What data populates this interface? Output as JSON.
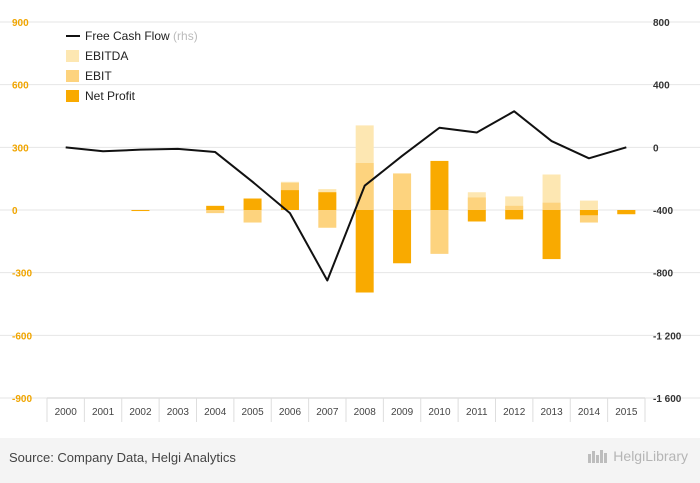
{
  "chart_data": {
    "type": "bar+line",
    "categories": [
      "2000",
      "2001",
      "2002",
      "2003",
      "2004",
      "2005",
      "2006",
      "2007",
      "2008",
      "2009",
      "2010",
      "2011",
      "2012",
      "2013",
      "2014",
      "2015"
    ],
    "series": [
      {
        "name": "EBITDA",
        "axis": "left",
        "kind": "bar",
        "values": [
          0,
          0,
          0,
          0,
          5,
          25,
          135,
          100,
          405,
          175,
          125,
          85,
          65,
          170,
          45,
          0
        ]
      },
      {
        "name": "EBIT",
        "axis": "left",
        "kind": "bar",
        "values": [
          0,
          0,
          0,
          0,
          -15,
          -60,
          130,
          -85,
          225,
          175,
          -210,
          60,
          20,
          35,
          -60,
          -20
        ]
      },
      {
        "name": "Net Profit",
        "axis": "left",
        "kind": "bar",
        "values": [
          0,
          0,
          -5,
          0,
          20,
          55,
          95,
          85,
          -395,
          -255,
          235,
          -55,
          -45,
          -235,
          -25,
          -20
        ]
      },
      {
        "name": "Free Cash Flow",
        "axis": "right",
        "kind": "line",
        "values": [
          0,
          -25,
          -15,
          -10,
          -30,
          -220,
          -420,
          -850,
          -245,
          -55,
          125,
          95,
          230,
          40,
          -70,
          0
        ]
      }
    ],
    "left_axis": {
      "min": -900,
      "max": 900,
      "ticks": [
        900,
        600,
        300,
        0,
        -300,
        -600,
        -900
      ]
    },
    "right_axis": {
      "min": -1600,
      "max": 800,
      "ticks": [
        "800",
        "400",
        "0",
        "-400",
        "-800",
        "-1 200",
        "-1 600"
      ],
      "tick_values": [
        800,
        400,
        0,
        -400,
        -800,
        -1200,
        -1600
      ]
    },
    "legend": [
      {
        "name": "Free Cash Flow",
        "suffix": "(rhs)"
      },
      {
        "name": "EBITDA"
      },
      {
        "name": "EBIT"
      },
      {
        "name": "Net Profit"
      }
    ],
    "legend_position": "top-left",
    "grid": true
  },
  "colors": {
    "ebitda": "#fde7b2",
    "ebit": "#fdd37e",
    "net_profit": "#f9aa00",
    "fcf": "#111111",
    "left_axis": "#f0a500",
    "right_axis": "#333333"
  },
  "footer": {
    "source": "Source: Company Data, Helgi Analytics",
    "brand": "HelgiLibrary"
  }
}
